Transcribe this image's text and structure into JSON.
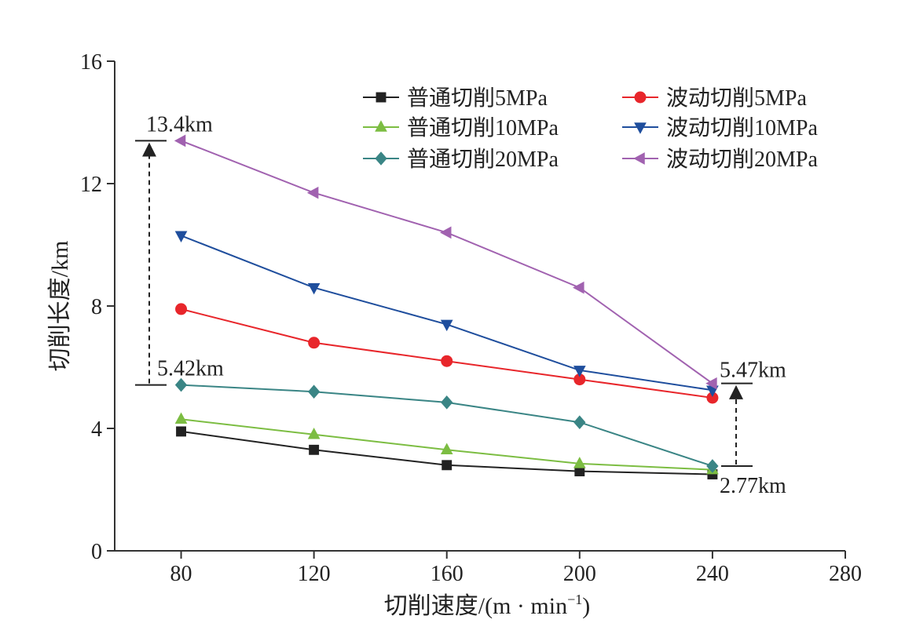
{
  "chart_data": {
    "type": "line",
    "x": [
      80,
      120,
      160,
      200,
      240
    ],
    "xlim": [
      60,
      280
    ],
    "ylim": [
      0,
      16
    ],
    "xticks": [
      80,
      120,
      160,
      200,
      240,
      280
    ],
    "yticks": [
      0,
      4,
      8,
      12,
      16
    ],
    "xlabel": "切削速度/(m · min",
    "xlabel_sup": "−1",
    "xlabel_end": ")",
    "ylabel": "切削长度/km",
    "grid": false,
    "legend_position": "top-right",
    "series": [
      {
        "name": "普通切削5MPa",
        "color": "#222222",
        "marker": "square",
        "values": [
          3.9,
          3.3,
          2.8,
          2.6,
          2.5
        ]
      },
      {
        "name": "波动切削5MPa",
        "color": "#e8262b",
        "marker": "circle",
        "values": [
          7.9,
          6.8,
          6.2,
          5.6,
          5.0
        ]
      },
      {
        "name": "普通切削10MPa",
        "color": "#7cbd42",
        "marker": "triangle-up",
        "values": [
          4.3,
          3.8,
          3.3,
          2.85,
          2.65
        ]
      },
      {
        "name": "波动切削10MPa",
        "color": "#1f4e9d",
        "marker": "triangle-down",
        "values": [
          10.3,
          8.6,
          7.4,
          5.9,
          5.25
        ]
      },
      {
        "name": "普通切削20MPa",
        "color": "#3a8585",
        "marker": "diamond",
        "values": [
          5.42,
          5.2,
          4.85,
          4.2,
          2.77
        ]
      },
      {
        "name": "波动切削20MPa",
        "color": "#a162b0",
        "marker": "triangle-left",
        "values": [
          13.4,
          11.7,
          10.4,
          8.6,
          5.47
        ]
      }
    ],
    "annotations": [
      {
        "text": "13.4km",
        "x": 80,
        "y": 13.4
      },
      {
        "text": "5.42km",
        "x": 80,
        "y": 5.42
      },
      {
        "text": "5.47km",
        "x": 240,
        "y": 5.47
      },
      {
        "text": "2.77km",
        "x": 240,
        "y": 2.77
      }
    ]
  }
}
